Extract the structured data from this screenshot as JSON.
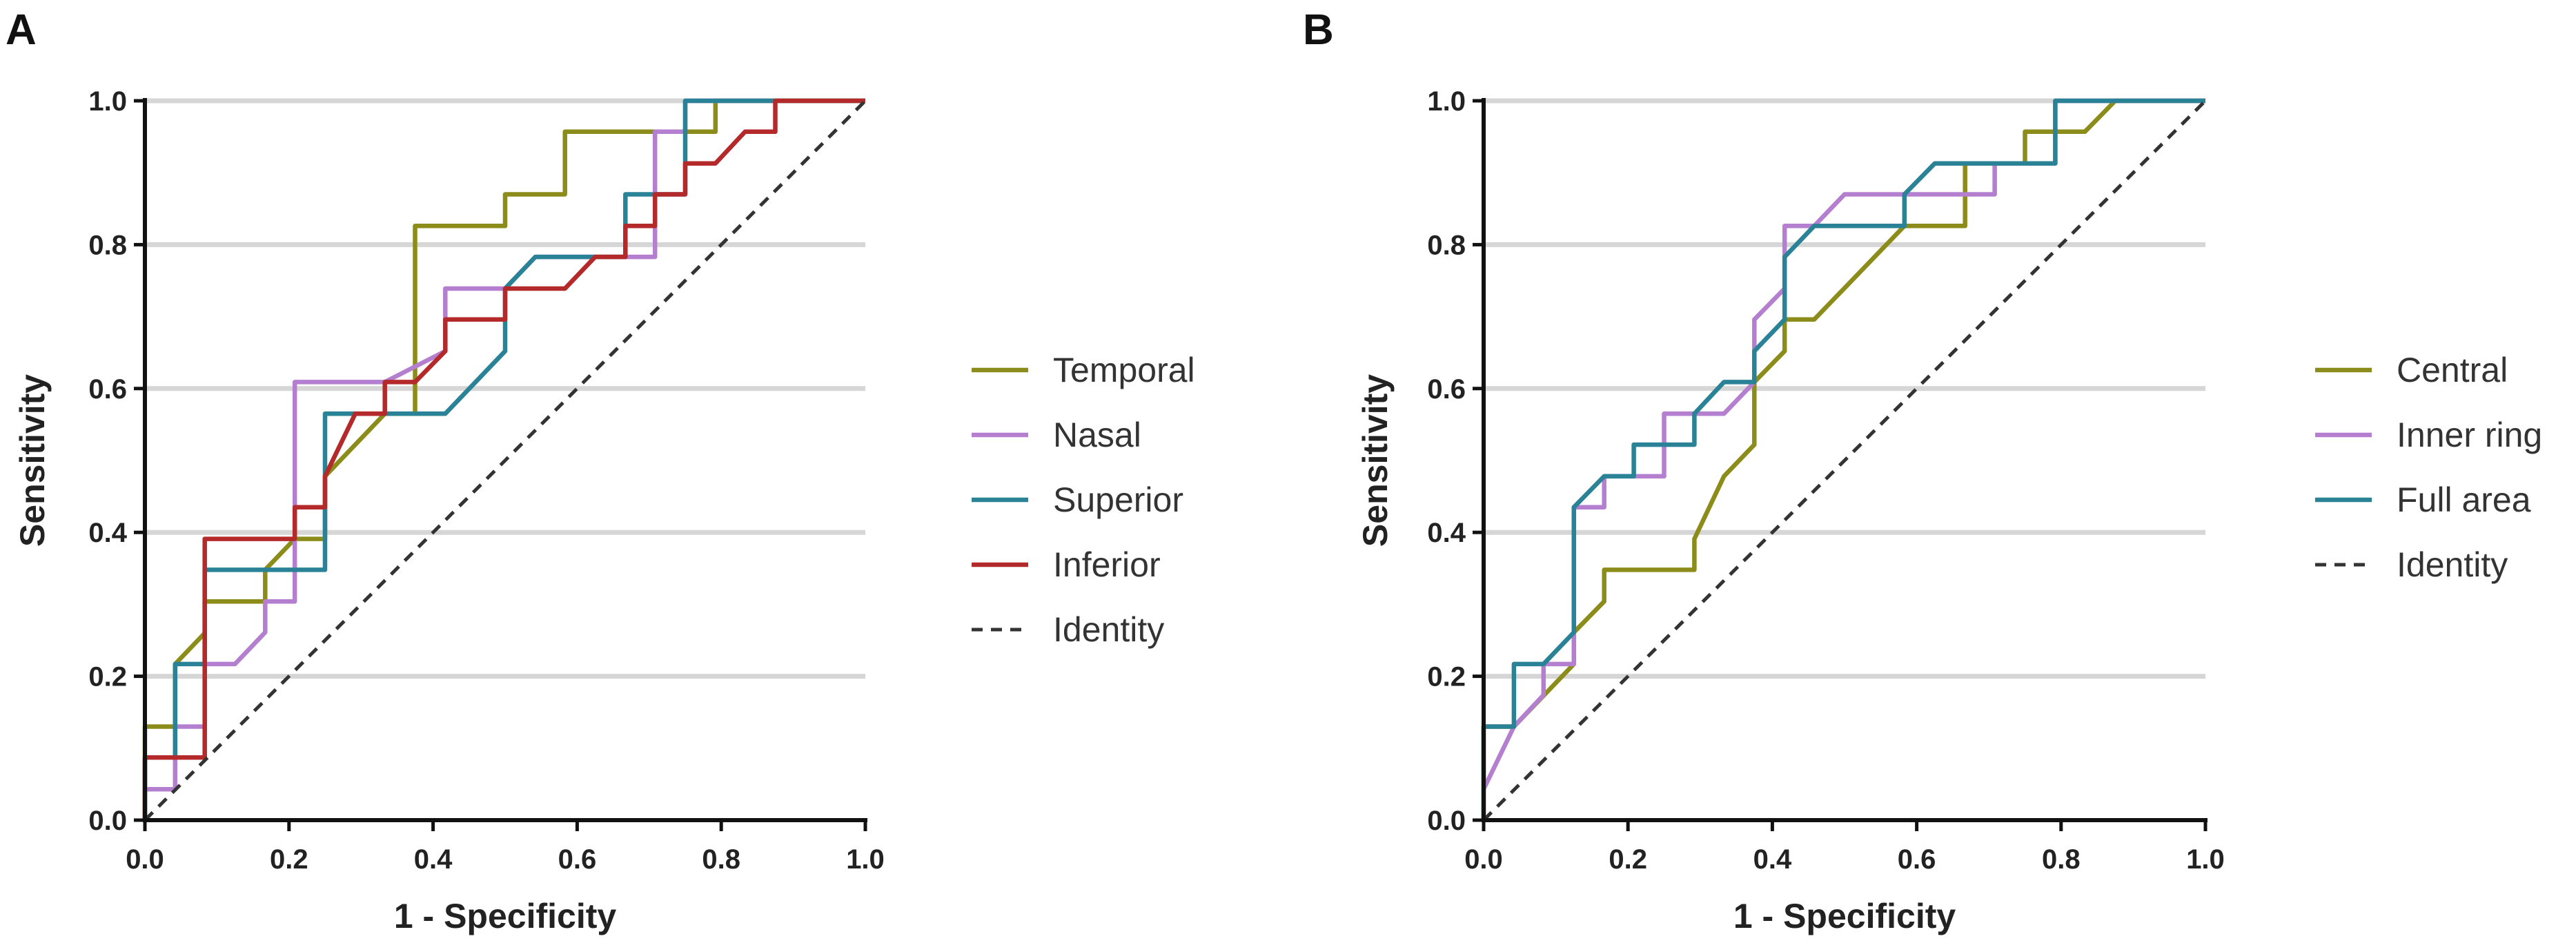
{
  "chart_data": [
    {
      "type": "line",
      "panel": "A",
      "title": "",
      "xlabel": "1 - Specificity",
      "ylabel": "Sensitivity",
      "xlim": [
        0,
        1
      ],
      "ylim": [
        0,
        1
      ],
      "xticks": [
        "0.0",
        "0.2",
        "0.4",
        "0.6",
        "0.8",
        "1.0"
      ],
      "yticks": [
        "0.0",
        "0.2",
        "0.4",
        "0.6",
        "0.8",
        "1.0"
      ],
      "grid": "horizontal",
      "legend_position": "right",
      "series": [
        {
          "name": "Temporal",
          "color": "#8c8c1a",
          "points": [
            [
              0,
              0
            ],
            [
              0,
              0.13
            ],
            [
              0.042,
              0.13
            ],
            [
              0.042,
              0.217
            ],
            [
              0.083,
              0.26
            ],
            [
              0.083,
              0.304
            ],
            [
              0.167,
              0.304
            ],
            [
              0.167,
              0.348
            ],
            [
              0.208,
              0.391
            ],
            [
              0.25,
              0.391
            ],
            [
              0.25,
              0.478
            ],
            [
              0.333,
              0.565
            ],
            [
              0.375,
              0.565
            ],
            [
              0.375,
              0.826
            ],
            [
              0.5,
              0.826
            ],
            [
              0.5,
              0.87
            ],
            [
              0.583,
              0.87
            ],
            [
              0.583,
              0.957
            ],
            [
              0.792,
              0.957
            ],
            [
              0.792,
              1.0
            ],
            [
              1.0,
              1.0
            ]
          ]
        },
        {
          "name": "Nasal",
          "color": "#b57fd0",
          "points": [
            [
              0,
              0
            ],
            [
              0,
              0.043
            ],
            [
              0.042,
              0.043
            ],
            [
              0.042,
              0.13
            ],
            [
              0.083,
              0.13
            ],
            [
              0.083,
              0.217
            ],
            [
              0.125,
              0.217
            ],
            [
              0.167,
              0.261
            ],
            [
              0.167,
              0.304
            ],
            [
              0.208,
              0.304
            ],
            [
              0.208,
              0.609
            ],
            [
              0.333,
              0.609
            ],
            [
              0.417,
              0.652
            ],
            [
              0.417,
              0.739
            ],
            [
              0.5,
              0.739
            ],
            [
              0.542,
              0.783
            ],
            [
              0.708,
              0.783
            ],
            [
              0.708,
              0.957
            ],
            [
              0.75,
              0.957
            ],
            [
              0.75,
              1.0
            ],
            [
              1.0,
              1.0
            ]
          ]
        },
        {
          "name": "Superior",
          "color": "#2a8296",
          "points": [
            [
              0,
              0
            ],
            [
              0,
              0.087
            ],
            [
              0.042,
              0.087
            ],
            [
              0.042,
              0.217
            ],
            [
              0.083,
              0.217
            ],
            [
              0.083,
              0.348
            ],
            [
              0.25,
              0.348
            ],
            [
              0.25,
              0.565
            ],
            [
              0.417,
              0.565
            ],
            [
              0.5,
              0.652
            ],
            [
              0.5,
              0.739
            ],
            [
              0.542,
              0.783
            ],
            [
              0.667,
              0.783
            ],
            [
              0.667,
              0.87
            ],
            [
              0.75,
              0.87
            ],
            [
              0.75,
              1.0
            ],
            [
              1.0,
              1.0
            ]
          ]
        },
        {
          "name": "Inferior",
          "color": "#b42a2a",
          "points": [
            [
              0,
              0
            ],
            [
              0,
              0.087
            ],
            [
              0.083,
              0.087
            ],
            [
              0.083,
              0.391
            ],
            [
              0.208,
              0.391
            ],
            [
              0.208,
              0.435
            ],
            [
              0.25,
              0.435
            ],
            [
              0.25,
              0.478
            ],
            [
              0.292,
              0.565
            ],
            [
              0.333,
              0.565
            ],
            [
              0.333,
              0.609
            ],
            [
              0.375,
              0.609
            ],
            [
              0.417,
              0.652
            ],
            [
              0.417,
              0.696
            ],
            [
              0.5,
              0.696
            ],
            [
              0.5,
              0.739
            ],
            [
              0.583,
              0.739
            ],
            [
              0.625,
              0.783
            ],
            [
              0.667,
              0.783
            ],
            [
              0.667,
              0.826
            ],
            [
              0.708,
              0.826
            ],
            [
              0.708,
              0.87
            ],
            [
              0.75,
              0.87
            ],
            [
              0.75,
              0.913
            ],
            [
              0.792,
              0.913
            ],
            [
              0.833,
              0.957
            ],
            [
              0.875,
              0.957
            ],
            [
              0.875,
              1.0
            ],
            [
              1.0,
              1.0
            ]
          ]
        },
        {
          "name": "Identity",
          "color": "#333333",
          "dashed": true,
          "points": [
            [
              0,
              0
            ],
            [
              1,
              1
            ]
          ]
        }
      ]
    },
    {
      "type": "line",
      "panel": "B",
      "title": "",
      "xlabel": "1 - Specificity",
      "ylabel": "Sensitivity",
      "xlim": [
        0,
        1
      ],
      "ylim": [
        0,
        1
      ],
      "xticks": [
        "0.0",
        "0.2",
        "0.4",
        "0.6",
        "0.8",
        "1.0"
      ],
      "yticks": [
        "0.0",
        "0.2",
        "0.4",
        "0.6",
        "0.8",
        "1.0"
      ],
      "grid": "horizontal",
      "legend_position": "right",
      "series": [
        {
          "name": "Central",
          "color": "#8c8c1a",
          "points": [
            [
              0,
              0
            ],
            [
              0,
              0.13
            ],
            [
              0.042,
              0.13
            ],
            [
              0.125,
              0.217
            ],
            [
              0.125,
              0.261
            ],
            [
              0.167,
              0.304
            ],
            [
              0.167,
              0.348
            ],
            [
              0.292,
              0.348
            ],
            [
              0.292,
              0.391
            ],
            [
              0.333,
              0.478
            ],
            [
              0.375,
              0.522
            ],
            [
              0.375,
              0.609
            ],
            [
              0.417,
              0.652
            ],
            [
              0.417,
              0.696
            ],
            [
              0.458,
              0.696
            ],
            [
              0.583,
              0.826
            ],
            [
              0.667,
              0.826
            ],
            [
              0.667,
              0.913
            ],
            [
              0.75,
              0.913
            ],
            [
              0.75,
              0.957
            ],
            [
              0.833,
              0.957
            ],
            [
              0.875,
              1.0
            ],
            [
              1.0,
              1.0
            ]
          ]
        },
        {
          "name": "Inner ring",
          "color": "#b57fd0",
          "points": [
            [
              0,
              0.043
            ],
            [
              0.042,
              0.13
            ],
            [
              0.083,
              0.174
            ],
            [
              0.083,
              0.217
            ],
            [
              0.125,
              0.217
            ],
            [
              0.125,
              0.435
            ],
            [
              0.167,
              0.435
            ],
            [
              0.167,
              0.478
            ],
            [
              0.25,
              0.478
            ],
            [
              0.25,
              0.565
            ],
            [
              0.292,
              0.565
            ],
            [
              0.333,
              0.565
            ],
            [
              0.375,
              0.609
            ],
            [
              0.375,
              0.696
            ],
            [
              0.417,
              0.739
            ],
            [
              0.417,
              0.826
            ],
            [
              0.458,
              0.826
            ],
            [
              0.5,
              0.87
            ],
            [
              0.583,
              0.87
            ],
            [
              0.583,
              0.87
            ],
            [
              0.708,
              0.87
            ],
            [
              0.708,
              0.913
            ],
            [
              0.792,
              0.913
            ],
            [
              0.792,
              1.0
            ],
            [
              1.0,
              1.0
            ]
          ]
        },
        {
          "name": "Full area",
          "color": "#2a8296",
          "points": [
            [
              0,
              0
            ],
            [
              0,
              0.13
            ],
            [
              0.042,
              0.13
            ],
            [
              0.042,
              0.217
            ],
            [
              0.083,
              0.217
            ],
            [
              0.125,
              0.261
            ],
            [
              0.125,
              0.435
            ],
            [
              0.167,
              0.478
            ],
            [
              0.208,
              0.478
            ],
            [
              0.208,
              0.522
            ],
            [
              0.292,
              0.522
            ],
            [
              0.292,
              0.565
            ],
            [
              0.333,
              0.609
            ],
            [
              0.375,
              0.609
            ],
            [
              0.375,
              0.652
            ],
            [
              0.417,
              0.696
            ],
            [
              0.417,
              0.783
            ],
            [
              0.458,
              0.826
            ],
            [
              0.583,
              0.826
            ],
            [
              0.583,
              0.87
            ],
            [
              0.625,
              0.913
            ],
            [
              0.708,
              0.913
            ],
            [
              0.708,
              0.913
            ],
            [
              0.792,
              0.913
            ],
            [
              0.792,
              1.0
            ],
            [
              1.0,
              1.0
            ]
          ]
        },
        {
          "name": "Identity",
          "color": "#333333",
          "dashed": true,
          "points": [
            [
              0,
              0
            ],
            [
              1,
              1
            ]
          ]
        }
      ]
    }
  ]
}
